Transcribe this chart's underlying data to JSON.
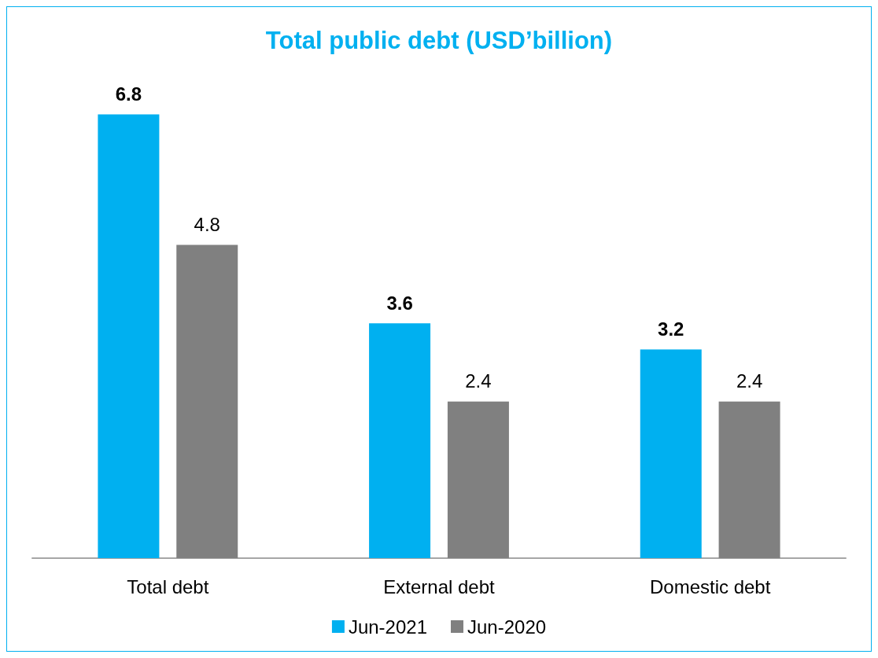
{
  "chart_data": {
    "type": "bar",
    "title": "Total public debt (USD’billion)",
    "categories": [
      "Total debt",
      "External debt",
      "Domestic debt"
    ],
    "series": [
      {
        "name": "Jun-2021",
        "color": "#00b0f0",
        "values": [
          6.8,
          3.6,
          3.2
        ]
      },
      {
        "name": "Jun-2020",
        "color": "#808080",
        "values": [
          4.8,
          2.4,
          2.4
        ]
      }
    ],
    "data_labels": true,
    "legend": "bottom",
    "grid": false
  }
}
